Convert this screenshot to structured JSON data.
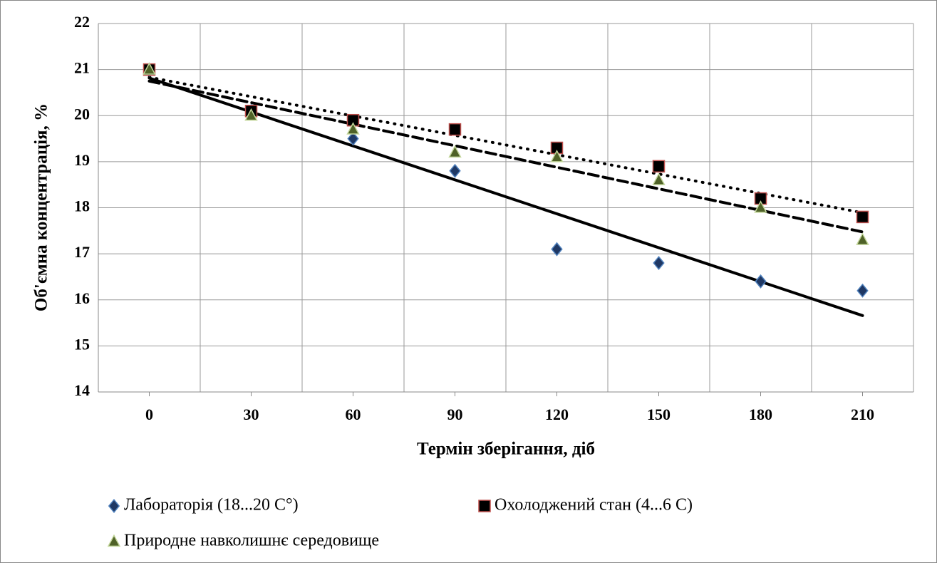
{
  "chart_data": {
    "type": "scatter",
    "x_label": "Термін зберігання, діб",
    "y_label": "Об'ємна концентрація, %",
    "x": [
      0,
      30,
      60,
      90,
      120,
      150,
      180,
      210
    ],
    "xlim": [
      -15,
      225
    ],
    "xticks": [
      0,
      30,
      60,
      90,
      120,
      150,
      180,
      210
    ],
    "ylim": [
      14,
      22
    ],
    "yticks": [
      14,
      15,
      16,
      17,
      18,
      19,
      20,
      21,
      22
    ],
    "grid": true,
    "legend": "bottom",
    "series": [
      {
        "name": "Лабораторія (18...20 С°)",
        "marker": "diamond",
        "color": "#1f3864",
        "edgecolor": "#4f81bd",
        "trendline": "solid",
        "values": [
          21,
          20.1,
          19.5,
          18.8,
          17.1,
          16.8,
          16.4,
          16.2
        ]
      },
      {
        "name": "Охолоджений стан (4...6 С)",
        "marker": "square",
        "color": "#000000",
        "edgecolor": "#c0504d",
        "trendline": "dotted",
        "values": [
          21,
          20.1,
          19.9,
          19.7,
          19.3,
          18.9,
          18.2,
          17.8
        ]
      },
      {
        "name": "Природне навколишнє середовище",
        "marker": "triangle",
        "color": "#4f6228",
        "edgecolor": "#c3d69b",
        "trendline": "dashed",
        "values": [
          21,
          20.0,
          19.7,
          19.2,
          19.1,
          18.6,
          18.0,
          17.3
        ]
      }
    ]
  }
}
